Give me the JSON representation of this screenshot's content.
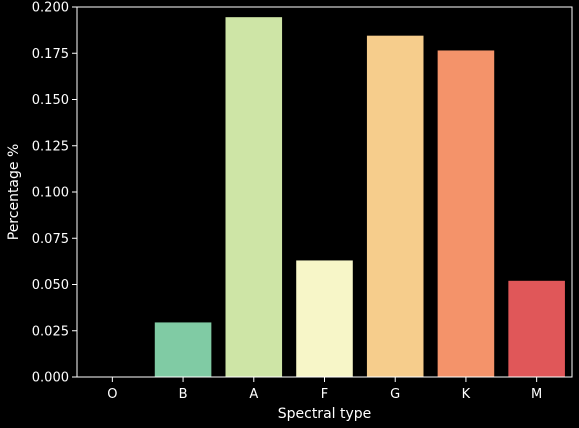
{
  "chart_data": {
    "type": "bar",
    "title": "",
    "xlabel": "Spectral type",
    "ylabel": "Percentage %",
    "categories": [
      "O",
      "B",
      "A",
      "F",
      "G",
      "K",
      "M"
    ],
    "values": [
      0.0,
      0.0295,
      0.1945,
      0.063,
      0.1845,
      0.1765,
      0.052
    ],
    "ylim": [
      0,
      0.2
    ],
    "yticks": [
      "0.000",
      "0.025",
      "0.050",
      "0.075",
      "0.100",
      "0.125",
      "0.150",
      "0.175",
      "0.200"
    ],
    "grid": false,
    "colors": [
      "#9e0142",
      "#80cba4",
      "#cee5a6",
      "#f7f6c8",
      "#f6cd8c",
      "#f4936a",
      "#e05759"
    ],
    "background": "#000000",
    "axis_color": "#ffffff"
  }
}
